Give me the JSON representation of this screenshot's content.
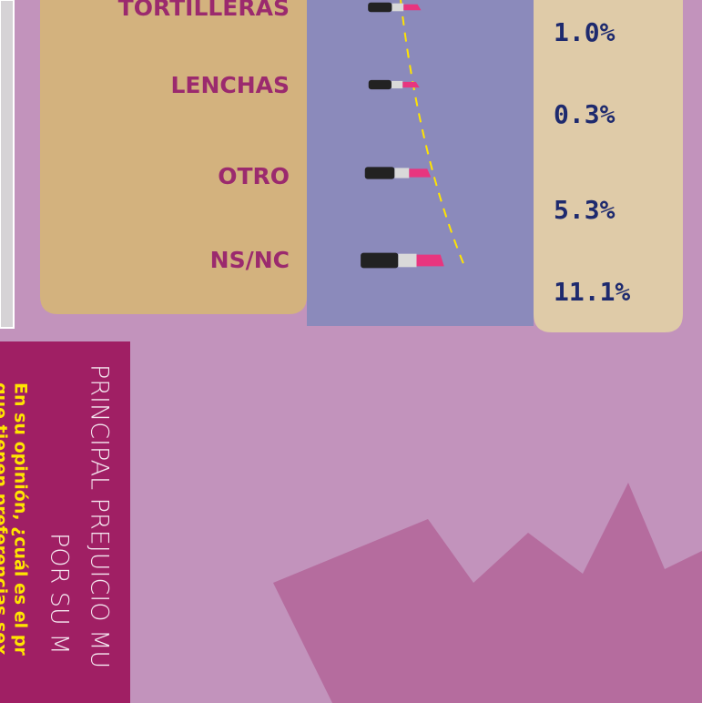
{
  "chart_data": {
    "type": "lipstick",
    "categories": [
      "TORTILLERAS",
      "LENCHAS",
      "OTRO",
      "NS/NC"
    ],
    "values": [
      1.0,
      0.3,
      5.3,
      11.1
    ],
    "value_labels": [
      "1.0%",
      "0.3%",
      "5.3%",
      "11.1%"
    ],
    "color": "#e8357f",
    "title": [
      "PRINCIPAL PREJUICIO MU",
      "POR SU M"
    ],
    "question": [
      "En su opinión, ¿cuál es el pr",
      "que tienen preferencias sex"
    ]
  }
}
